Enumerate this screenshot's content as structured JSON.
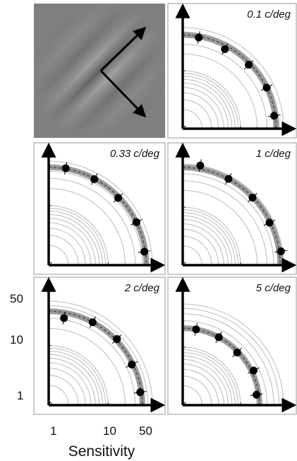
{
  "figure": {
    "xlabel": "Sensitivity",
    "tick_labels": [
      "1",
      "10",
      "50"
    ],
    "colors": {
      "axis": "#000000",
      "frame": "#999999",
      "contour": "#bbbbbb",
      "band": "#9a9a9a",
      "fit": "#444444",
      "marker": "#000000"
    }
  },
  "chart_data": [
    {
      "type": "scatter",
      "title": "0.1 c/deg",
      "axis_scale": "log",
      "axis_range": [
        0.9,
        60
      ],
      "fit_radius": 44,
      "angles_deg": [
        80,
        62,
        44,
        26,
        8
      ],
      "values": [
        42,
        38,
        41,
        44,
        42
      ]
    },
    {
      "type": "scatter",
      "title": "0.33 c/deg",
      "axis_scale": "log",
      "axis_range": [
        0.9,
        60
      ],
      "fit_radius": 47,
      "angles_deg": [
        80,
        62,
        44,
        26,
        8
      ],
      "values": [
        48,
        46,
        45,
        47,
        45
      ]
    },
    {
      "type": "scatter",
      "title": "1 c/deg",
      "axis_scale": "log",
      "axis_range": [
        0.9,
        60
      ],
      "fit_radius": 52,
      "angles_deg": [
        80,
        62,
        44,
        26,
        8
      ],
      "values": [
        60,
        52,
        51,
        50,
        56
      ]
    },
    {
      "type": "scatter",
      "title": "2 c/deg",
      "axis_scale": "log",
      "axis_range": [
        0.9,
        60
      ],
      "fit_radius": 40,
      "angles_deg": [
        80,
        62,
        44,
        26,
        8
      ],
      "values": [
        32,
        40,
        42,
        38,
        38
      ]
    },
    {
      "type": "scatter",
      "title": "5 c/deg",
      "axis_scale": "log",
      "axis_range": [
        0.9,
        60
      ],
      "fit_radius": 22,
      "angles_deg": [
        80,
        62,
        44,
        26,
        8
      ],
      "values": [
        22,
        22,
        21,
        24,
        20
      ]
    }
  ]
}
